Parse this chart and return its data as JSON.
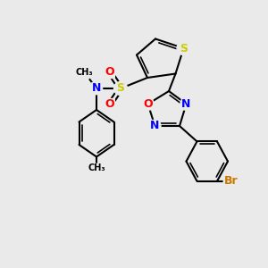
{
  "background_color": "#eaeaea",
  "bond_color": "#000000",
  "bond_lw": 1.5,
  "atom_colors": {
    "N": "#0000ff",
    "O": "#ff0000",
    "S": "#cccc00",
    "Br": "#cc7700",
    "C": "#000000"
  },
  "font_size": 9,
  "font_size_small": 8
}
